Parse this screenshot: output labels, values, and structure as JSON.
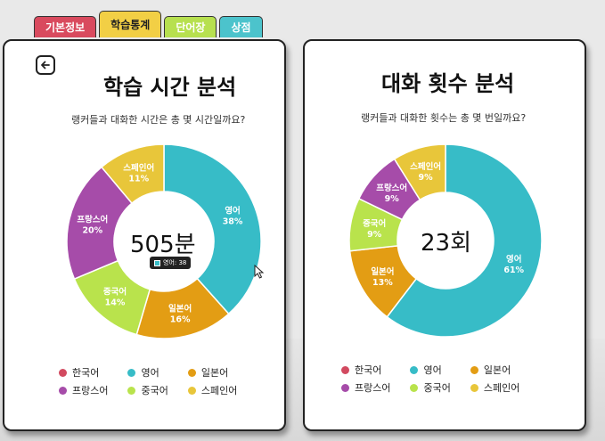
{
  "tabs": [
    {
      "label": "기본정보",
      "color": "#d94a5e",
      "active": false
    },
    {
      "label": "학습통계",
      "color": "#f2cf45",
      "active": true
    },
    {
      "label": "단어장",
      "color": "#b7e04f",
      "active": false
    },
    {
      "label": "상점",
      "color": "#4cc3cc",
      "active": false
    }
  ],
  "colors": {
    "korean": "#d24a60",
    "english": "#37bcc7",
    "japanese": "#e39d14",
    "french": "#a64ca9",
    "chinese": "#b9e34c",
    "spanish": "#e8c63a"
  },
  "left": {
    "title": "학습 시간 분석",
    "subtitle": "랭커들과 대화한 시간은 총 몇 시간일까요?",
    "center": "505분",
    "tooltip": "영어: 38"
  },
  "right": {
    "title": "대화 횟수 분석",
    "subtitle": "랭커들과 대화한 횟수는 총 몇 번일까요?",
    "center": "23회"
  },
  "legend": [
    "한국어",
    "영어",
    "일본어",
    "프랑스어",
    "중국어",
    "스페인어"
  ],
  "chart_data": [
    {
      "type": "pie",
      "title": "학습 시간 분석",
      "categories": [
        "영어",
        "일본어",
        "중국어",
        "프랑스어",
        "스페인어"
      ],
      "values": [
        38,
        16,
        14,
        20,
        11
      ],
      "labels": [
        "38%",
        "16%",
        "14%",
        "20%",
        "11%"
      ],
      "legend": [
        "한국어",
        "영어",
        "일본어",
        "프랑스어",
        "중국어",
        "스페인어"
      ]
    },
    {
      "type": "pie",
      "title": "대화 횟수 분석",
      "categories": [
        "영어",
        "일본어",
        "중국어",
        "프랑스어",
        "스페인어"
      ],
      "values": [
        61,
        13,
        9,
        9,
        9
      ],
      "labels": [
        "61%",
        "13%",
        "9%",
        "9%",
        "9%"
      ],
      "legend": [
        "한국어",
        "영어",
        "일본어",
        "프랑스어",
        "중국어",
        "스페인어"
      ]
    }
  ]
}
